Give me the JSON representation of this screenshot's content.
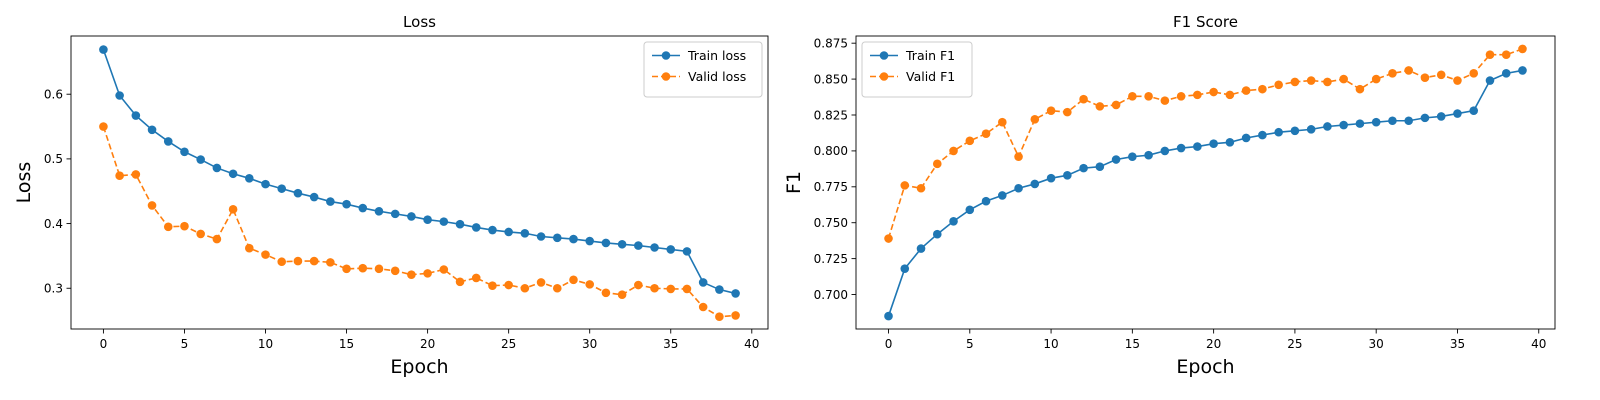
{
  "chart_data": [
    {
      "type": "line",
      "title": "Loss",
      "xlabel": "Epoch",
      "ylabel": "Loss",
      "xlim": [
        -2,
        41
      ],
      "ylim": [
        0.237,
        0.69
      ],
      "xticks": [
        0,
        5,
        10,
        15,
        20,
        25,
        30,
        35,
        40
      ],
      "yticks": [
        0.3,
        0.4,
        0.5,
        0.6
      ],
      "ytick_labels": [
        "0.3",
        "0.4",
        "0.5",
        "0.6"
      ],
      "grid": false,
      "legend_position": "top-right",
      "x": [
        0,
        1,
        2,
        3,
        4,
        5,
        6,
        7,
        8,
        9,
        10,
        11,
        12,
        13,
        14,
        15,
        16,
        17,
        18,
        19,
        20,
        21,
        22,
        23,
        24,
        25,
        26,
        27,
        28,
        29,
        30,
        31,
        32,
        33,
        34,
        35,
        36,
        37,
        38,
        39
      ],
      "series": [
        {
          "name": "Train loss",
          "color": "#1f77b4",
          "line_style": "solid",
          "values": [
            0.669,
            0.598,
            0.567,
            0.545,
            0.527,
            0.511,
            0.499,
            0.486,
            0.477,
            0.47,
            0.461,
            0.454,
            0.447,
            0.441,
            0.434,
            0.43,
            0.424,
            0.419,
            0.415,
            0.411,
            0.406,
            0.403,
            0.399,
            0.394,
            0.39,
            0.387,
            0.385,
            0.38,
            0.378,
            0.376,
            0.373,
            0.37,
            0.368,
            0.366,
            0.363,
            0.36,
            0.357,
            0.309,
            0.298,
            0.292
          ]
        },
        {
          "name": "Valid loss",
          "color": "#ff7f0e",
          "line_style": "dashed",
          "values": [
            0.55,
            0.474,
            0.476,
            0.428,
            0.395,
            0.396,
            0.384,
            0.376,
            0.422,
            0.362,
            0.352,
            0.341,
            0.342,
            0.342,
            0.34,
            0.33,
            0.331,
            0.33,
            0.327,
            0.321,
            0.323,
            0.329,
            0.31,
            0.316,
            0.304,
            0.305,
            0.3,
            0.309,
            0.3,
            0.313,
            0.306,
            0.293,
            0.29,
            0.305,
            0.3,
            0.299,
            0.299,
            0.271,
            0.256,
            0.258
          ]
        }
      ]
    },
    {
      "type": "line",
      "title": "F1 Score",
      "xlabel": "Epoch",
      "ylabel": "F1",
      "xlim": [
        -2,
        41
      ],
      "ylim": [
        0.676,
        0.88
      ],
      "xticks": [
        0,
        5,
        10,
        15,
        20,
        25,
        30,
        35,
        40
      ],
      "yticks": [
        0.7,
        0.725,
        0.75,
        0.775,
        0.8,
        0.825,
        0.85,
        0.875
      ],
      "ytick_labels": [
        "0.700",
        "0.725",
        "0.750",
        "0.775",
        "0.800",
        "0.825",
        "0.850",
        "0.875"
      ],
      "grid": false,
      "legend_position": "top-left",
      "x": [
        0,
        1,
        2,
        3,
        4,
        5,
        6,
        7,
        8,
        9,
        10,
        11,
        12,
        13,
        14,
        15,
        16,
        17,
        18,
        19,
        20,
        21,
        22,
        23,
        24,
        25,
        26,
        27,
        28,
        29,
        30,
        31,
        32,
        33,
        34,
        35,
        36,
        37,
        38,
        39
      ],
      "series": [
        {
          "name": "Train F1",
          "color": "#1f77b4",
          "line_style": "solid",
          "values": [
            0.685,
            0.718,
            0.732,
            0.742,
            0.751,
            0.759,
            0.765,
            0.769,
            0.774,
            0.777,
            0.781,
            0.783,
            0.788,
            0.789,
            0.794,
            0.796,
            0.797,
            0.8,
            0.802,
            0.803,
            0.805,
            0.806,
            0.809,
            0.811,
            0.813,
            0.814,
            0.815,
            0.817,
            0.818,
            0.819,
            0.82,
            0.821,
            0.821,
            0.823,
            0.824,
            0.826,
            0.828,
            0.849,
            0.854,
            0.856
          ]
        },
        {
          "name": "Valid F1",
          "color": "#ff7f0e",
          "line_style": "dashed",
          "values": [
            0.739,
            0.776,
            0.774,
            0.791,
            0.8,
            0.807,
            0.812,
            0.82,
            0.796,
            0.822,
            0.828,
            0.827,
            0.836,
            0.831,
            0.832,
            0.838,
            0.838,
            0.835,
            0.838,
            0.839,
            0.841,
            0.839,
            0.842,
            0.843,
            0.846,
            0.848,
            0.849,
            0.848,
            0.85,
            0.843,
            0.85,
            0.854,
            0.856,
            0.851,
            0.853,
            0.849,
            0.854,
            0.867,
            0.867,
            0.871
          ]
        }
      ]
    }
  ]
}
